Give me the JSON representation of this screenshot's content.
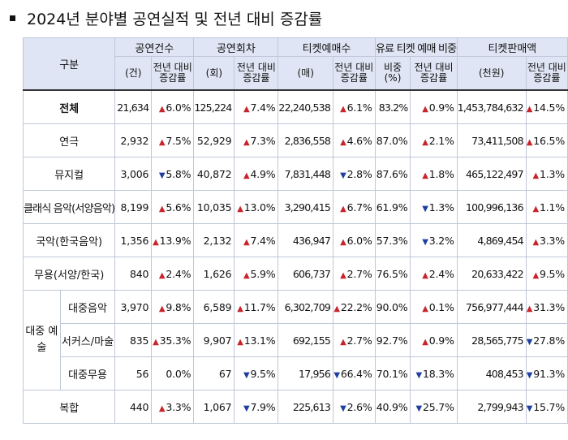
{
  "title": "2024년 분야별 공연실적 및 전년 대비 증감률",
  "header": {
    "category": "구분",
    "groups": [
      "공연건수",
      "공연회차",
      "티켓예매수",
      "유료 티켓 예매 비중",
      "티켓판매액"
    ],
    "sub": [
      {
        "unit": "(건)",
        "chg": "전년 대비 증감률"
      },
      {
        "unit": "(회)",
        "chg": "전년 대비 증감률"
      },
      {
        "unit": "(매)",
        "chg": "전년 대비 증감률"
      },
      {
        "unit": "비중 (%)",
        "chg": "전년 대비 증감률"
      },
      {
        "unit": "(천원)",
        "chg": "전년 대비 증감률"
      }
    ]
  },
  "popular_group_label": "대중 예술",
  "rows": [
    {
      "label": "전체",
      "v": [
        {
          "n": "21,634",
          "d": "up",
          "c": "6.0%"
        },
        {
          "n": "125,224",
          "d": "up",
          "c": "7.4%"
        },
        {
          "n": "22,240,538",
          "d": "up",
          "c": "6.1%"
        },
        {
          "n": "83.2%",
          "d": "up",
          "c": "0.9%"
        },
        {
          "n": "1,453,784,632",
          "d": "up",
          "c": "14.5%"
        }
      ]
    },
    {
      "label": "연극",
      "v": [
        {
          "n": "2,932",
          "d": "up",
          "c": "7.5%"
        },
        {
          "n": "52,929",
          "d": "up",
          "c": "7.3%"
        },
        {
          "n": "2,836,558",
          "d": "up",
          "c": "4.6%"
        },
        {
          "n": "87.0%",
          "d": "up",
          "c": "2.1%"
        },
        {
          "n": "73,411,508",
          "d": "up",
          "c": "16.5%"
        }
      ]
    },
    {
      "label": "뮤지컬",
      "v": [
        {
          "n": "3,006",
          "d": "down",
          "c": "5.8%"
        },
        {
          "n": "40,872",
          "d": "up",
          "c": "4.9%"
        },
        {
          "n": "7,831,448",
          "d": "down",
          "c": "2.8%"
        },
        {
          "n": "87.6%",
          "d": "up",
          "c": "1.8%"
        },
        {
          "n": "465,122,497",
          "d": "up",
          "c": "1.3%"
        }
      ]
    },
    {
      "label": "클래식 음악(서양음악)",
      "v": [
        {
          "n": "8,199",
          "d": "up",
          "c": "5.6%"
        },
        {
          "n": "10,035",
          "d": "up",
          "c": "13.0%"
        },
        {
          "n": "3,290,415",
          "d": "up",
          "c": "6.7%"
        },
        {
          "n": "61.9%",
          "d": "down",
          "c": "1.3%"
        },
        {
          "n": "100,996,136",
          "d": "up",
          "c": "1.1%"
        }
      ]
    },
    {
      "label": "국악(한국음악)",
      "v": [
        {
          "n": "1,356",
          "d": "up",
          "c": "13.9%"
        },
        {
          "n": "2,132",
          "d": "up",
          "c": "7.4%"
        },
        {
          "n": "436,947",
          "d": "up",
          "c": "6.0%"
        },
        {
          "n": "57.3%",
          "d": "down",
          "c": "3.2%"
        },
        {
          "n": "4,869,454",
          "d": "up",
          "c": "3.3%"
        }
      ]
    },
    {
      "label": "무용(서양/한국)",
      "v": [
        {
          "n": "840",
          "d": "up",
          "c": "2.4%"
        },
        {
          "n": "1,626",
          "d": "up",
          "c": "5.9%"
        },
        {
          "n": "606,737",
          "d": "up",
          "c": "2.7%"
        },
        {
          "n": "76.5%",
          "d": "up",
          "c": "2.4%"
        },
        {
          "n": "20,633,422",
          "d": "up",
          "c": "9.5%"
        }
      ]
    },
    {
      "label": "대중음악",
      "v": [
        {
          "n": "3,970",
          "d": "up",
          "c": "9.8%"
        },
        {
          "n": "6,589",
          "d": "up",
          "c": "11.7%"
        },
        {
          "n": "6,302,709",
          "d": "up",
          "c": "22.2%"
        },
        {
          "n": "90.0%",
          "d": "up",
          "c": "0.1%"
        },
        {
          "n": "756,977,444",
          "d": "up",
          "c": "31.3%"
        }
      ]
    },
    {
      "label": "서커스/마술",
      "v": [
        {
          "n": "835",
          "d": "up",
          "c": "35.3%"
        },
        {
          "n": "9,907",
          "d": "up",
          "c": "13.1%"
        },
        {
          "n": "692,155",
          "d": "up",
          "c": "2.7%"
        },
        {
          "n": "92.7%",
          "d": "up",
          "c": "0.9%"
        },
        {
          "n": "28,565,775",
          "d": "down",
          "c": "27.8%"
        }
      ]
    },
    {
      "label": "대중무용",
      "v": [
        {
          "n": "56",
          "d": "none",
          "c": "0.0%"
        },
        {
          "n": "67",
          "d": "down",
          "c": "9.5%"
        },
        {
          "n": "17,956",
          "d": "down",
          "c": "66.4%"
        },
        {
          "n": "70.1%",
          "d": "down",
          "c": "18.3%"
        },
        {
          "n": "408,453",
          "d": "down",
          "c": "91.3%"
        }
      ]
    },
    {
      "label": "복합",
      "v": [
        {
          "n": "440",
          "d": "up",
          "c": "3.3%"
        },
        {
          "n": "1,067",
          "d": "down",
          "c": "7.9%"
        },
        {
          "n": "225,613",
          "d": "down",
          "c": "2.6%"
        },
        {
          "n": "40.9%",
          "d": "down",
          "c": "25.7%"
        },
        {
          "n": "2,799,943",
          "d": "down",
          "c": "15.7%"
        }
      ]
    }
  ]
}
